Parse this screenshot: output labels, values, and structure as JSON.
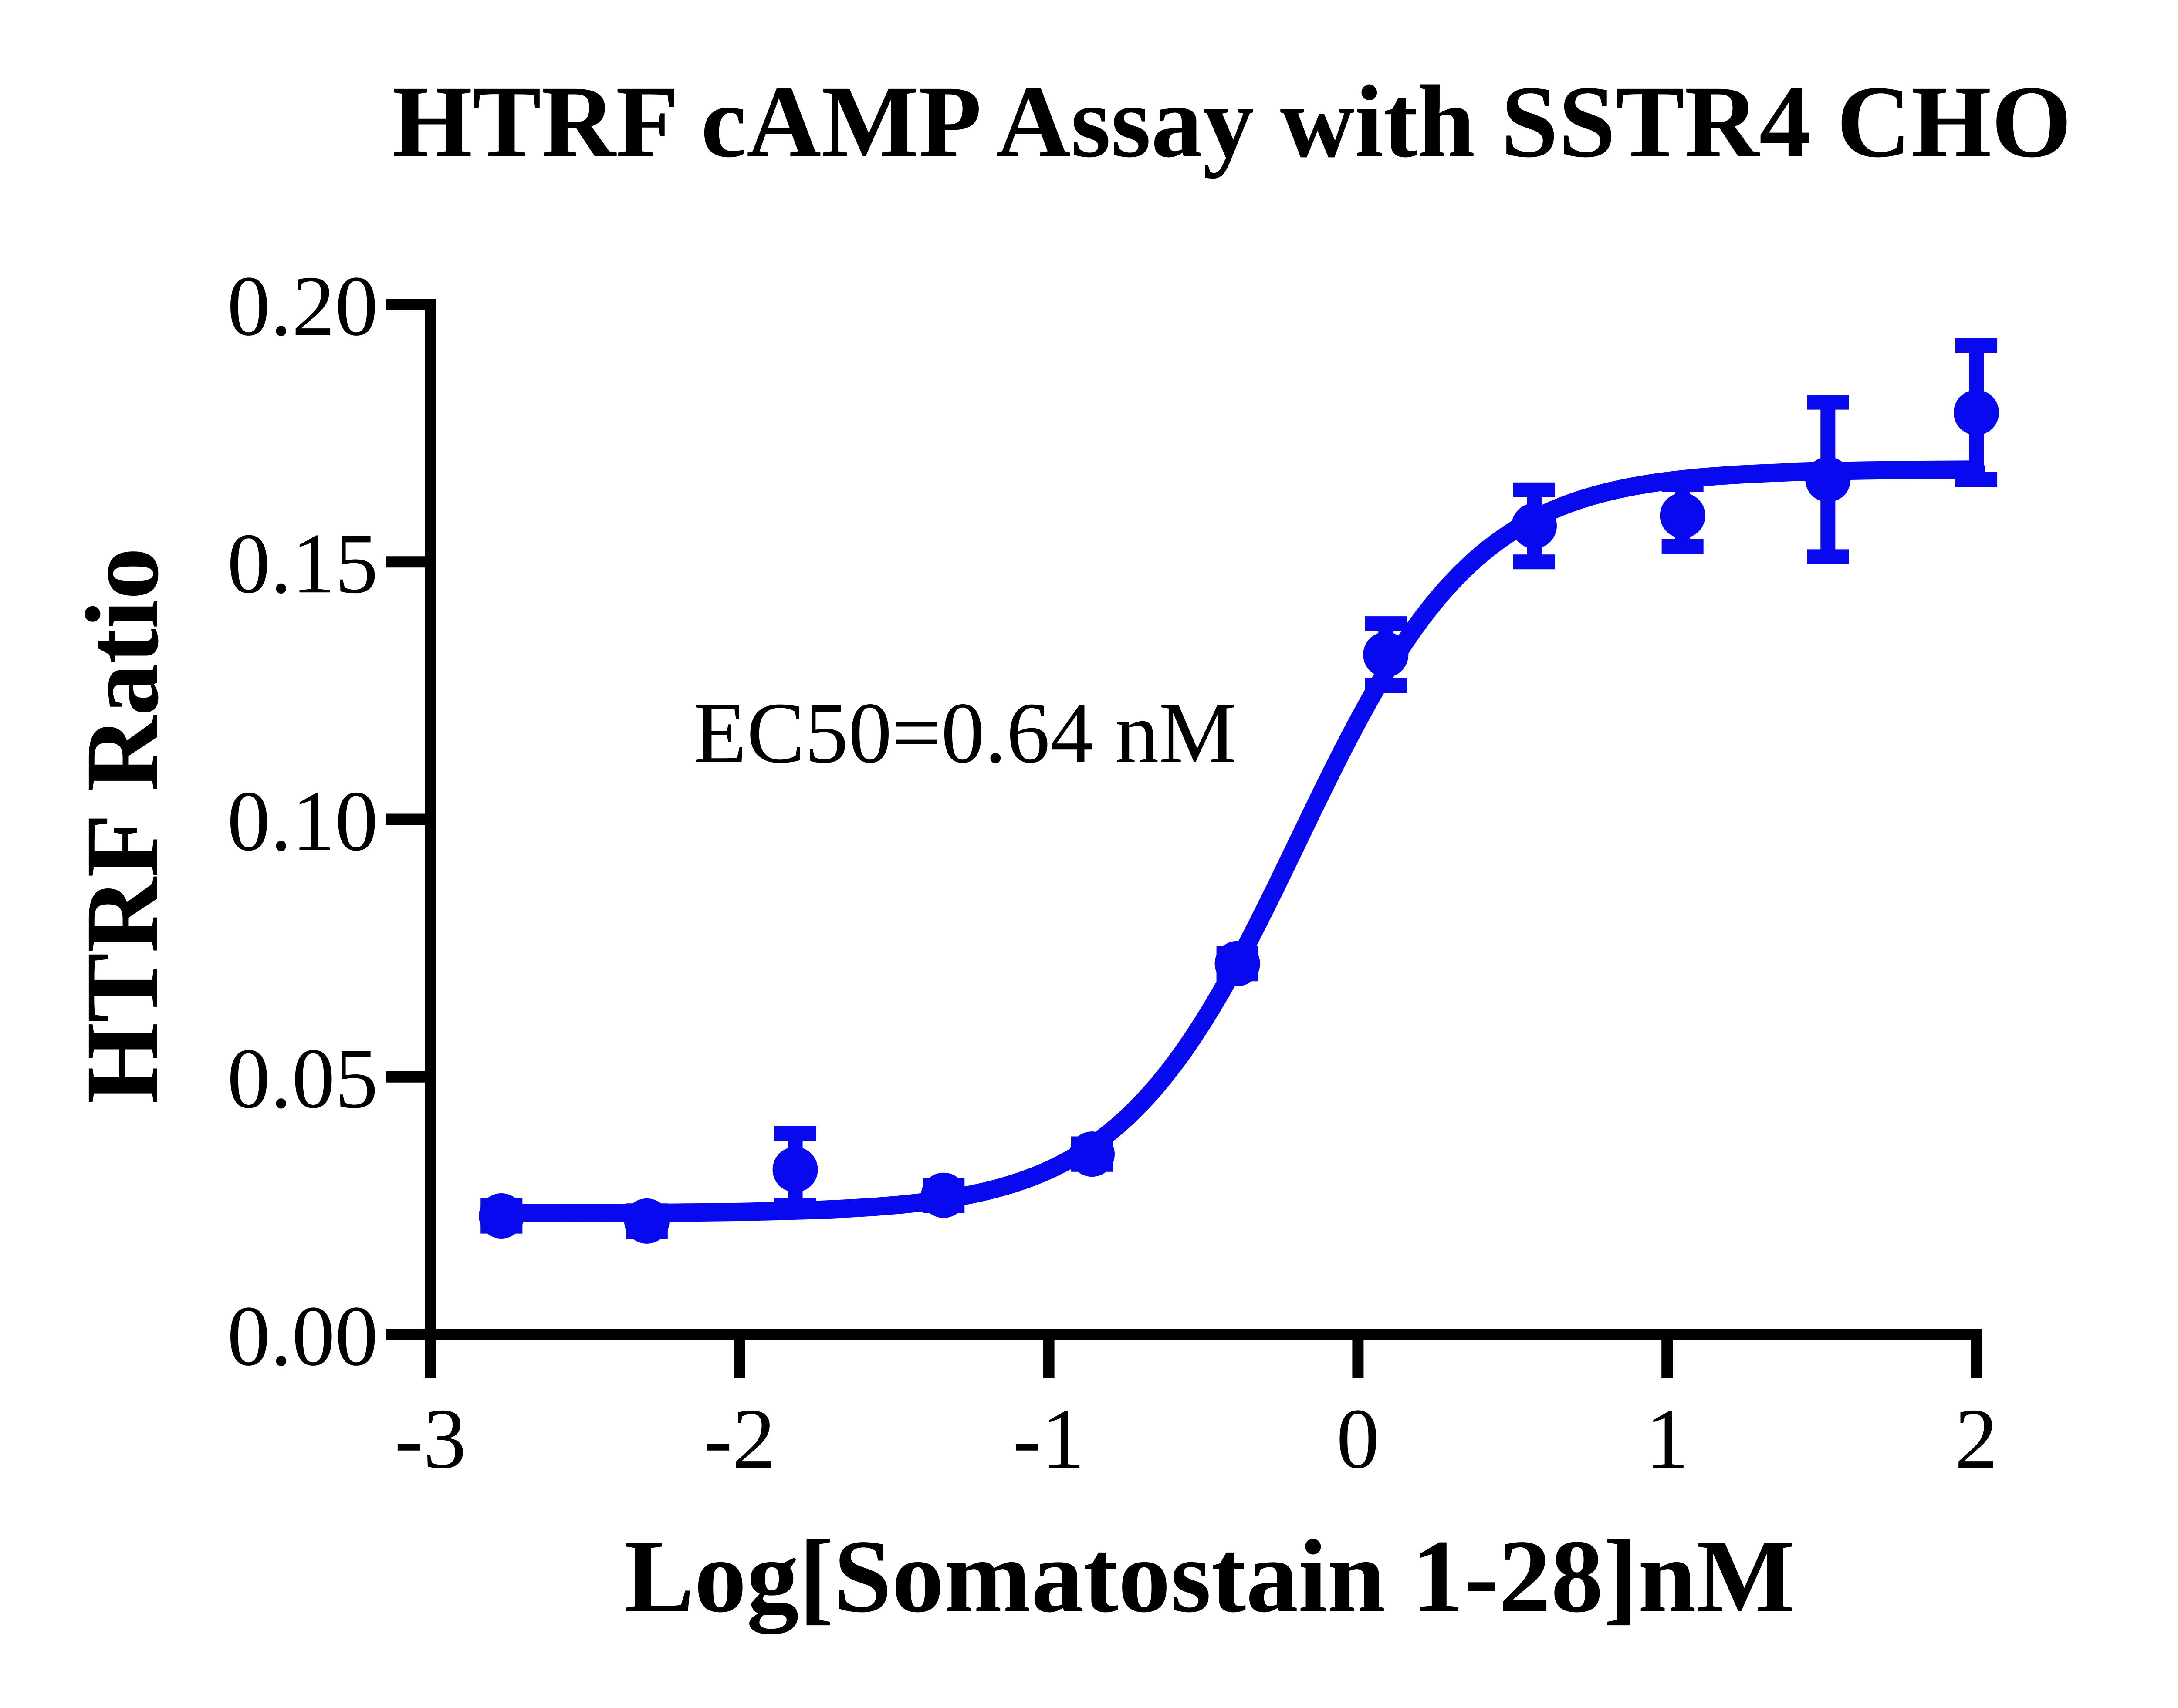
{
  "chart_data": {
    "type": "scatter",
    "title": "HTRF cAMP Assay with SSTR4 CHO",
    "xlabel": "Log[Somatostain 1-28]nM",
    "ylabel": "HTRF Ratio",
    "xlim": [
      -3,
      2
    ],
    "ylim": [
      0.0,
      0.2
    ],
    "xticks": {
      "values": [
        -3,
        -2,
        -1,
        0,
        1,
        2
      ],
      "labels": [
        "-3",
        "-2",
        "-1",
        "0",
        "1",
        "2"
      ]
    },
    "yticks": {
      "values": [
        0.0,
        0.05,
        0.1,
        0.15,
        0.2
      ],
      "labels": [
        "0.00",
        "0.05",
        "0.10",
        "0.15",
        "0.20"
      ]
    },
    "grid": false,
    "legend": "none",
    "annotation": {
      "text": "EC50=0.64 nM"
    },
    "series": [
      {
        "marker": "circle",
        "color": "#0909f0",
        "x": [
          -2.77,
          -2.3,
          -1.82,
          -1.34,
          -0.86,
          -0.39,
          0.09,
          0.57,
          1.05,
          1.52,
          2.0
        ],
        "y": [
          0.023,
          0.022,
          0.032,
          0.027,
          0.035,
          0.072,
          0.132,
          0.157,
          0.159,
          0.166,
          0.179
        ],
        "yerr": [
          0.002,
          0.002,
          0.007,
          0.002,
          0.002,
          0.002,
          0.006,
          0.007,
          0.006,
          0.015,
          0.013
        ]
      }
    ],
    "fit_curve": {
      "model": "4PL",
      "bottom": 0.0235,
      "top": 0.168,
      "logEC50": -0.194,
      "hill_slope": 1.5,
      "x_range": [
        -2.77,
        2.0
      ]
    }
  },
  "colors": {
    "accent": "#0909f0",
    "axis": "#000000",
    "background": "#ffffff",
    "text": "#000000"
  }
}
